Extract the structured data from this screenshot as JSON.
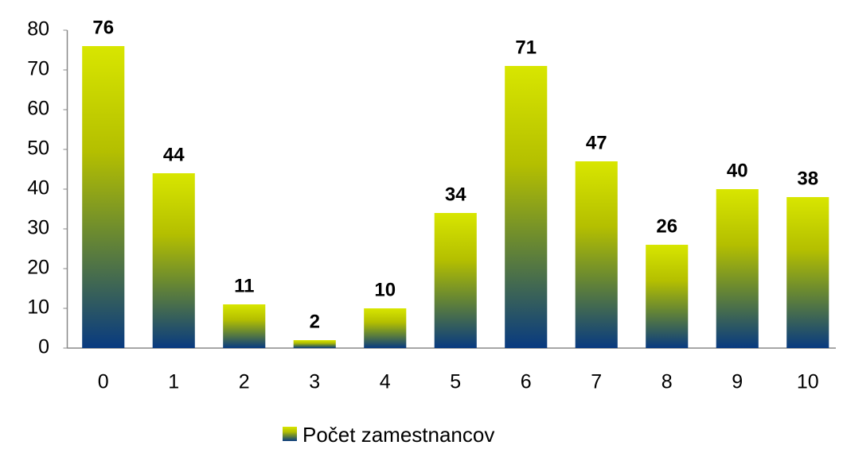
{
  "chart_data": {
    "type": "bar",
    "categories": [
      "0",
      "1",
      "2",
      "3",
      "4",
      "5",
      "6",
      "7",
      "8",
      "9",
      "10"
    ],
    "series": [
      {
        "name": "Počet zamestnancov",
        "color": "#d4e000",
        "values": [
          76,
          44,
          11,
          2,
          10,
          34,
          71,
          47,
          26,
          40,
          38
        ]
      }
    ],
    "ylim": [
      0,
      80
    ],
    "yticks": [
      0,
      10,
      20,
      30,
      40,
      50,
      60,
      70,
      80
    ],
    "grid": false,
    "legend": "bottom"
  }
}
